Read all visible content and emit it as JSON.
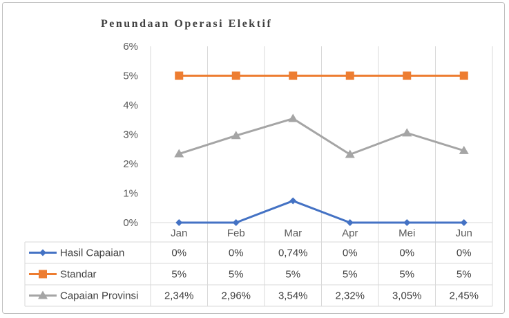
{
  "chart_data": {
    "type": "line",
    "title": "Penundaan Operasi Elektif",
    "categories": [
      "Jan",
      "Feb",
      "Mar",
      "Apr",
      "Mei",
      "Jun"
    ],
    "y_ticks": [
      "0%",
      "1%",
      "2%",
      "3%",
      "4%",
      "5%",
      "6%"
    ],
    "ylim": [
      0,
      6
    ],
    "grid": "vertical",
    "legend": "data-table",
    "series": [
      {
        "name": "Hasil Capaian",
        "values": [
          0,
          0,
          0.74,
          0,
          0,
          0
        ],
        "labels": [
          "0%",
          "0%",
          "0,74%",
          "0%",
          "0%",
          "0%"
        ],
        "color": "#4472c4",
        "marker": "diamond"
      },
      {
        "name": "Standar",
        "values": [
          5,
          5,
          5,
          5,
          5,
          5
        ],
        "labels": [
          "5%",
          "5%",
          "5%",
          "5%",
          "5%",
          "5%"
        ],
        "color": "#ed7d31",
        "marker": "square"
      },
      {
        "name": "Capaian Provinsi",
        "values": [
          2.34,
          2.96,
          3.54,
          2.32,
          3.05,
          2.45
        ],
        "labels": [
          "2,34%",
          "2,96%",
          "3,54%",
          "2,32%",
          "3,05%",
          "2,45%"
        ],
        "color": "#a5a5a5",
        "marker": "triangle"
      }
    ]
  }
}
